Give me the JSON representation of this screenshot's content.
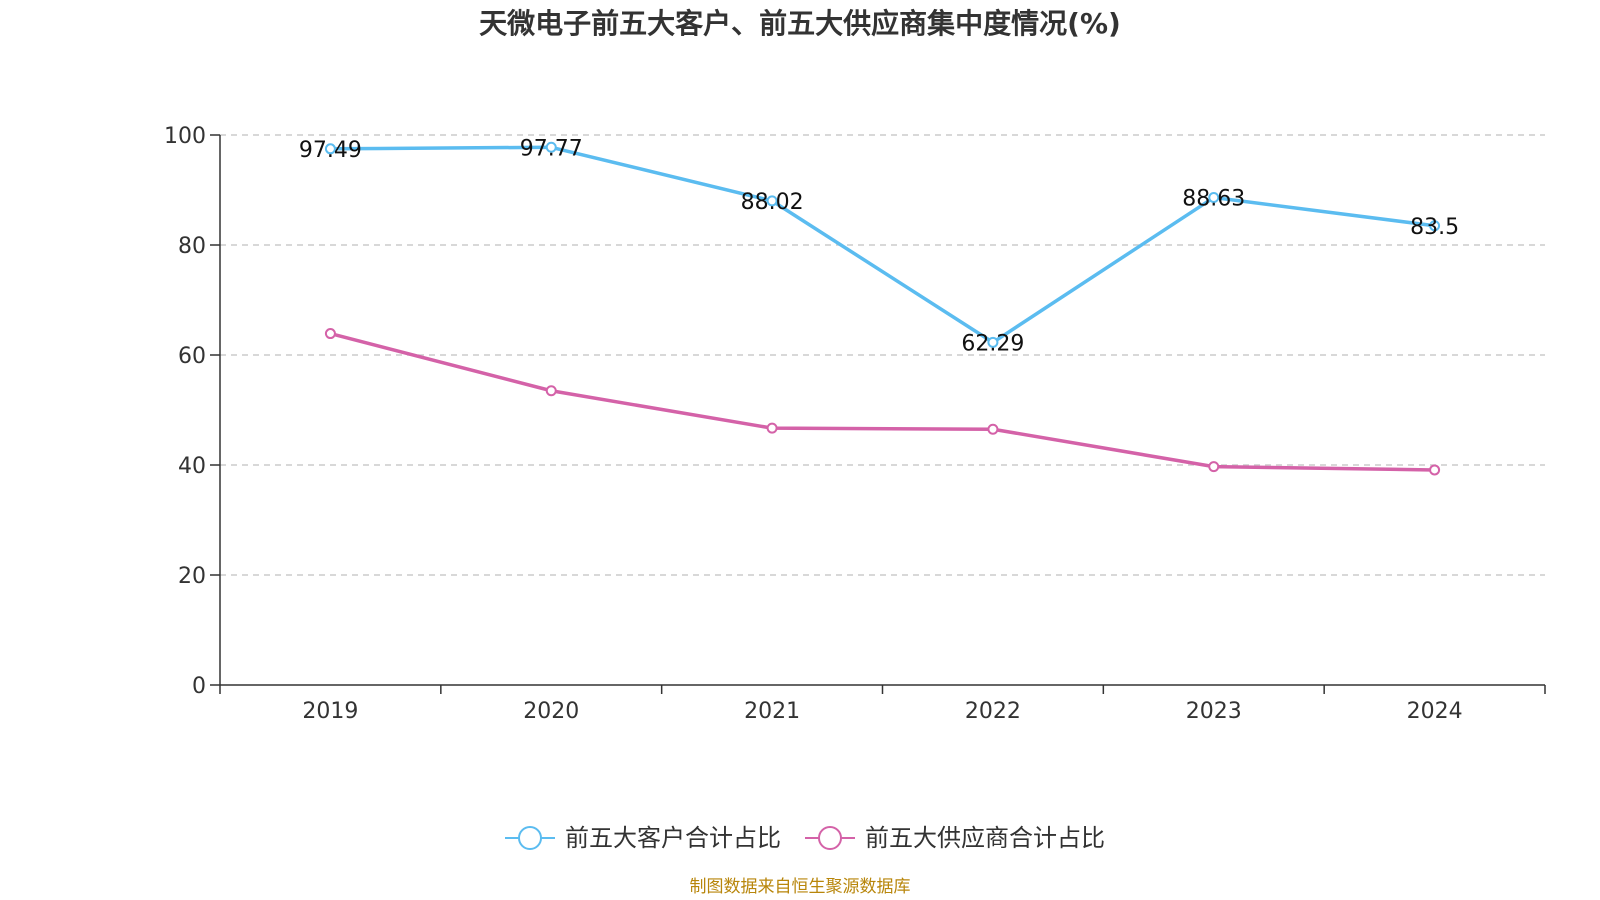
{
  "chart_data": {
    "type": "line",
    "title": "天微电子前五大客户、前五大供应商集中度情况(%)",
    "categories": [
      "2019",
      "2020",
      "2021",
      "2022",
      "2023",
      "2024"
    ],
    "ylim": [
      0,
      100
    ],
    "yticks": [
      0,
      20,
      40,
      60,
      80,
      100
    ],
    "grid": true,
    "legend_position": "bottom",
    "series": [
      {
        "name": "前五大客户合计占比",
        "color": "#5bbcf0",
        "values": [
          97.49,
          97.77,
          88.02,
          62.29,
          88.63,
          83.5
        ],
        "labels": [
          "97.49",
          "97.77",
          "88.02",
          "62.29",
          "88.63",
          "83.5"
        ]
      },
      {
        "name": "前五大供应商合计占比",
        "color": "#d462a8",
        "values": [
          63.9,
          53.5,
          46.7,
          46.5,
          39.7,
          39.1
        ]
      }
    ],
    "source": "制图数据来自恒生聚源数据库"
  }
}
